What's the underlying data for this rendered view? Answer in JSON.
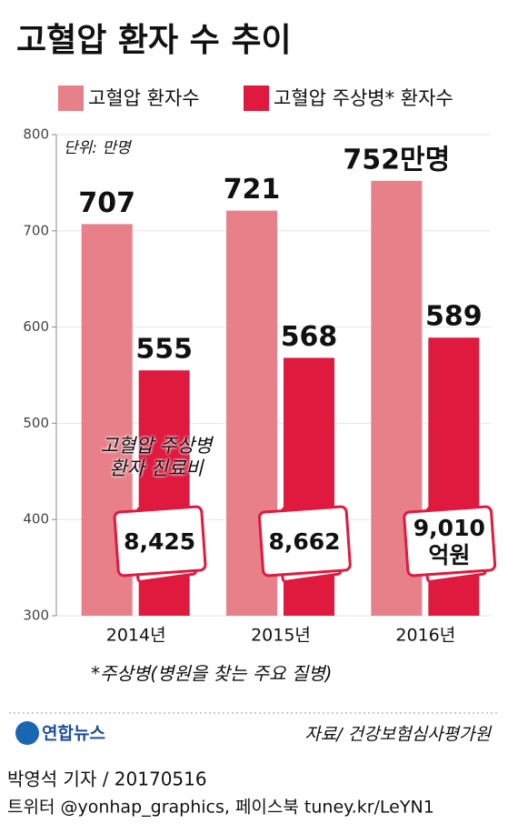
{
  "chart_data": {
    "type": "bar",
    "title": "고혈압 환자 수 추이",
    "unit_label": "단위: 만명",
    "categories": [
      "2014년",
      "2015년",
      "2016년"
    ],
    "series": [
      {
        "name": "고혈압 환자수",
        "color": "#e8808a",
        "values": [
          707,
          721,
          752
        ],
        "value_labels": [
          "707",
          "721",
          "752만명"
        ]
      },
      {
        "name": "고혈압 주상병* 환자수",
        "color": "#e0193f",
        "values": [
          555,
          568,
          589
        ]
      }
    ],
    "ylim": [
      300,
      800
    ],
    "yticks": [
      300,
      400,
      500,
      600,
      700,
      800
    ],
    "grid": true,
    "annotation": {
      "title": "고혈압 주상병\n환자 진료비",
      "values": [
        8425,
        8662,
        9010
      ],
      "value_labels": [
        "8,425",
        "8,662",
        "9,010\n억원"
      ]
    },
    "footnote": "*주상병(병원을 찾는 주요 질병)"
  },
  "footer": {
    "logo": "연합뉴스",
    "source": "자료/ 건강보험심사평가원",
    "byline": "박영석 기자 / 20170516",
    "social": "트위터 @yonhap_graphics, 페이스북 tuney.kr/LeYN1"
  }
}
